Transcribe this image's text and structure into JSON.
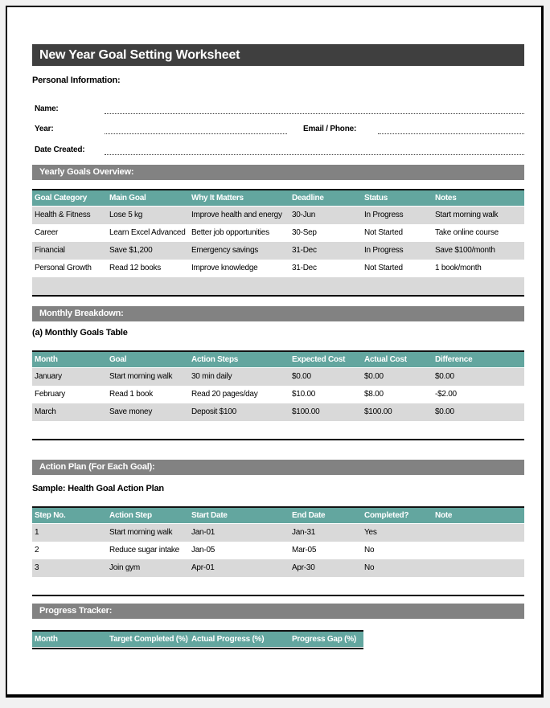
{
  "title": "New Year Goal Setting Worksheet",
  "personal": {
    "heading": "Personal Information:",
    "name_label": "Name:",
    "year_label": "Year:",
    "email_label": "Email / Phone:",
    "date_label": "Date Created:"
  },
  "yearly": {
    "section_title": "Yearly Goals Overview:",
    "headers": [
      "Goal Category",
      "Main Goal",
      "Why It Matters",
      "Deadline",
      "Status",
      "Notes"
    ],
    "rows": [
      [
        "Health & Fitness",
        "Lose 5 kg",
        "Improve health and energy",
        "30-Jun",
        "In Progress",
        "Start morning walk"
      ],
      [
        "Career",
        "Learn Excel Advanced",
        "Better job opportunities",
        "30-Sep",
        "Not Started",
        "Take online course"
      ],
      [
        "Financial",
        "Save $1,200",
        "Emergency savings",
        "31-Dec",
        "In Progress",
        "Save $100/month"
      ],
      [
        "Personal Growth",
        "Read 12 books",
        "Improve knowledge",
        "31-Dec",
        "Not Started",
        "1 book/month"
      ],
      [
        "",
        "",
        "",
        "",
        "",
        ""
      ]
    ]
  },
  "monthly": {
    "section_title": "Monthly Breakdown:",
    "subheading": "(a) Monthly Goals Table",
    "headers": [
      "Month",
      "Goal",
      "Action Steps",
      "Expected Cost",
      "Actual Cost",
      "Difference"
    ],
    "rows": [
      [
        "January",
        "Start morning walk",
        "30 min daily",
        "$0.00",
        "$0.00",
        "$0.00"
      ],
      [
        "February",
        "Read 1 book",
        "Read 20 pages/day",
        "$10.00",
        "$8.00",
        "-$2.00"
      ],
      [
        "March",
        "Save money",
        "Deposit $100",
        "$100.00",
        "$100.00",
        "$0.00"
      ],
      [
        "",
        "",
        "",
        "",
        "",
        ""
      ]
    ]
  },
  "action": {
    "section_title": "Action Plan (For Each Goal):",
    "subheading": "Sample: Health Goal Action Plan",
    "headers": [
      "Step No.",
      "Action Step",
      "Start Date",
      "End Date",
      "Completed?",
      "Note"
    ],
    "rows": [
      [
        "1",
        "Start morning walk",
        "Jan-01",
        "Jan-31",
        "Yes",
        ""
      ],
      [
        "2",
        "Reduce sugar intake",
        "Jan-05",
        "Mar-05",
        "No",
        ""
      ],
      [
        "3",
        "Join gym",
        "Apr-01",
        "Apr-30",
        "No",
        ""
      ],
      [
        "",
        "",
        "",
        "",
        "",
        ""
      ]
    ]
  },
  "progress": {
    "section_title": "Progress Tracker:",
    "headers": [
      "Month",
      "Target Completed (%)",
      "Actual Progress (%)",
      "Progress Gap (%)"
    ],
    "rows": []
  },
  "colors": {
    "title_bar": "#3f3f3f",
    "section_bar": "#828282",
    "table_header_teal": "#63a69f",
    "alt_row_gray": "#d9d9d9",
    "page_border": "#000000",
    "outside_background": "#f1f1f1"
  }
}
